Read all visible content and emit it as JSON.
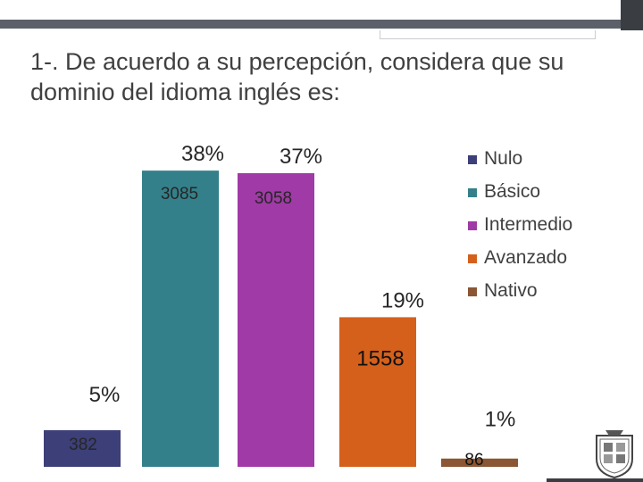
{
  "title": "1-. De acuerdo a su percepción, considera que su dominio del idioma inglés es:",
  "chart_data": {
    "type": "bar",
    "title": "",
    "xlabel": "",
    "ylabel": "",
    "categories": [
      "Nulo",
      "Básico",
      "Intermedio",
      "Avanzado",
      "Nativo"
    ],
    "values": [
      382,
      3085,
      3058,
      1558,
      86
    ],
    "percent_labels": [
      "5%",
      "38%",
      "37%",
      "19%",
      "1%"
    ],
    "value_labels": [
      "382",
      "3085",
      "3058",
      "1558",
      "86"
    ],
    "colors": [
      "#3c3f78",
      "#34808a",
      "#a03aa6",
      "#d4601c",
      "#8a5633"
    ],
    "ylim": [
      0,
      3300
    ],
    "grid": false,
    "legend_placement": "right"
  },
  "logo": {
    "icon": "university-seal-icon"
  }
}
